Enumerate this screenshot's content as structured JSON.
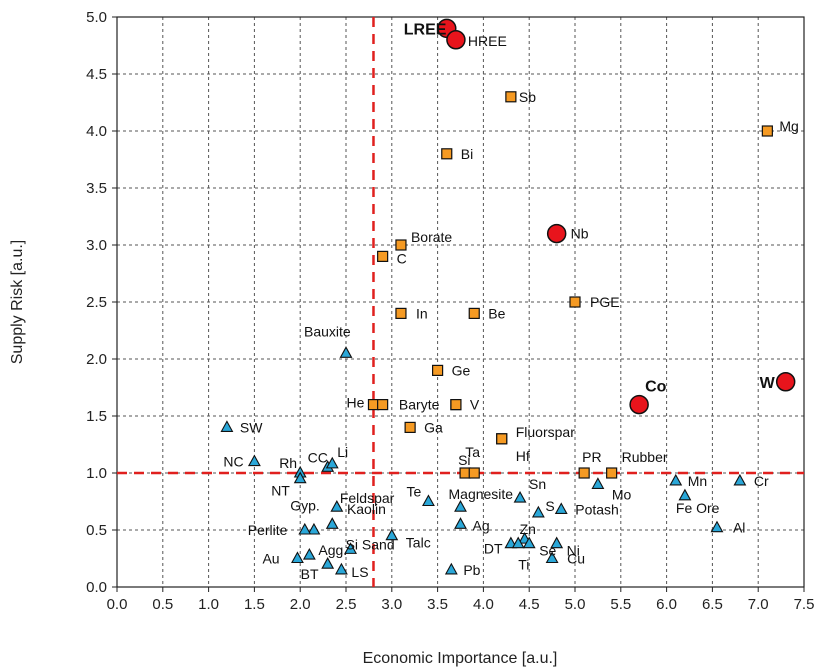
{
  "chart_data": {
    "type": "scatter",
    "xlabel": "Economic Importance [a.u.]",
    "ylabel": "Supply Risk [a.u.]",
    "xlim": [
      0,
      7.5
    ],
    "ylim": [
      0,
      5
    ],
    "xticks": [
      "0.0",
      "0.5",
      "1.0",
      "1.5",
      "2.0",
      "2.5",
      "3.0",
      "3.5",
      "4.0",
      "4.5",
      "5.0",
      "5.5",
      "6.0",
      "6.5",
      "7.0",
      "7.5"
    ],
    "yticks": [
      "0.0",
      "0.5",
      "1.0",
      "1.5",
      "2.0",
      "2.5",
      "3.0",
      "3.5",
      "4.0",
      "4.5",
      "5.0"
    ],
    "grid": true,
    "thresholds": {
      "x": 2.8,
      "y": 1.0
    },
    "colors": {
      "high": "#e8141c",
      "medium": "#f59a23",
      "low": "#2aa7d8",
      "threshold": "#e0201e"
    },
    "series": [
      {
        "marker": "circle",
        "points": [
          {
            "label": "LREE",
            "x": 3.6,
            "y": 4.9
          },
          {
            "label": "HREE",
            "x": 3.7,
            "y": 4.8
          },
          {
            "label": "Nb",
            "x": 4.8,
            "y": 3.1
          },
          {
            "label": "Co",
            "x": 5.7,
            "y": 1.6
          },
          {
            "label": "W",
            "x": 7.3,
            "y": 1.8
          }
        ]
      },
      {
        "marker": "square",
        "points": [
          {
            "label": "Sb",
            "x": 4.3,
            "y": 4.3
          },
          {
            "label": "Mg",
            "x": 7.1,
            "y": 4.0
          },
          {
            "label": "Bi",
            "x": 3.6,
            "y": 3.8
          },
          {
            "label": "Borate",
            "x": 3.1,
            "y": 3.0
          },
          {
            "label": "C",
            "x": 2.9,
            "y": 2.9
          },
          {
            "label": "PGE",
            "x": 5.0,
            "y": 2.5
          },
          {
            "label": "In",
            "x": 3.1,
            "y": 2.4
          },
          {
            "label": "Be",
            "x": 3.9,
            "y": 2.4
          },
          {
            "label": "Ge",
            "x": 3.5,
            "y": 1.9
          },
          {
            "label": "He",
            "x": 2.8,
            "y": 1.6
          },
          {
            "label": "",
            "x": 2.9,
            "y": 1.6
          },
          {
            "label": "Baryte",
            "x": 3.7,
            "y": 1.6
          },
          {
            "label": "V",
            "x": 3.7,
            "y": 1.6
          },
          {
            "label": "Ga",
            "x": 3.2,
            "y": 1.4
          },
          {
            "label": "Fluorspar",
            "x": 4.2,
            "y": 1.3
          },
          {
            "label": "Hf",
            "x": 4.2,
            "y": 1.3
          },
          {
            "label": "Si",
            "x": 3.8,
            "y": 1.0
          },
          {
            "label": "Ta",
            "x": 3.9,
            "y": 1.0
          },
          {
            "label": "PR",
            "x": 5.1,
            "y": 1.0
          },
          {
            "label": "Rubber",
            "x": 5.4,
            "y": 1.0
          }
        ]
      },
      {
        "marker": "triangle",
        "points": [
          {
            "label": "Bauxite",
            "x": 2.5,
            "y": 2.05
          },
          {
            "label": "SW",
            "x": 1.2,
            "y": 1.4
          },
          {
            "label": "NC",
            "x": 1.5,
            "y": 1.1
          },
          {
            "label": "Rh",
            "x": 2.0,
            "y": 1.0
          },
          {
            "label": "NT",
            "x": 2.0,
            "y": 0.95
          },
          {
            "label": "CC",
            "x": 2.3,
            "y": 1.05
          },
          {
            "label": "Li",
            "x": 2.35,
            "y": 1.08
          },
          {
            "label": "Mn",
            "x": 6.1,
            "y": 0.93
          },
          {
            "label": "Cr",
            "x": 6.8,
            "y": 0.93
          },
          {
            "label": "Mo",
            "x": 5.25,
            "y": 0.9
          },
          {
            "label": "Fe Ore",
            "x": 6.2,
            "y": 0.8
          },
          {
            "label": "Feldspar",
            "x": 2.4,
            "y": 0.7
          },
          {
            "label": "Te",
            "x": 3.4,
            "y": 0.75
          },
          {
            "label": "Magnesite",
            "x": 3.75,
            "y": 0.7
          },
          {
            "label": "Sn",
            "x": 4.4,
            "y": 0.78
          },
          {
            "label": "S",
            "x": 4.6,
            "y": 0.65
          },
          {
            "label": "Potash",
            "x": 4.85,
            "y": 0.68
          },
          {
            "label": "Gyp.",
            "x": 2.35,
            "y": 0.55
          },
          {
            "label": "Kaolin",
            "x": 2.15,
            "y": 0.5
          },
          {
            "label": "Perlite",
            "x": 2.05,
            "y": 0.5
          },
          {
            "label": "Talc",
            "x": 3.0,
            "y": 0.45
          },
          {
            "label": "Ag",
            "x": 3.75,
            "y": 0.55
          },
          {
            "label": "Zn",
            "x": 4.45,
            "y": 0.42
          },
          {
            "label": "Se",
            "x": 4.5,
            "y": 0.38
          },
          {
            "label": "DT",
            "x": 4.3,
            "y": 0.38
          },
          {
            "label": "Ni",
            "x": 4.8,
            "y": 0.38
          },
          {
            "label": "Al",
            "x": 6.55,
            "y": 0.52
          },
          {
            "label": "Agg.",
            "x": 2.1,
            "y": 0.28
          },
          {
            "label": "Si Sand",
            "x": 2.55,
            "y": 0.33
          },
          {
            "label": "Au",
            "x": 1.97,
            "y": 0.25
          },
          {
            "label": "BT",
            "x": 2.3,
            "y": 0.2
          },
          {
            "label": "LS",
            "x": 2.45,
            "y": 0.15
          },
          {
            "label": "Ti",
            "x": 4.38,
            "y": 0.38
          },
          {
            "label": "Cu",
            "x": 4.75,
            "y": 0.25
          },
          {
            "label": "Pb",
            "x": 3.65,
            "y": 0.15
          }
        ]
      }
    ]
  }
}
